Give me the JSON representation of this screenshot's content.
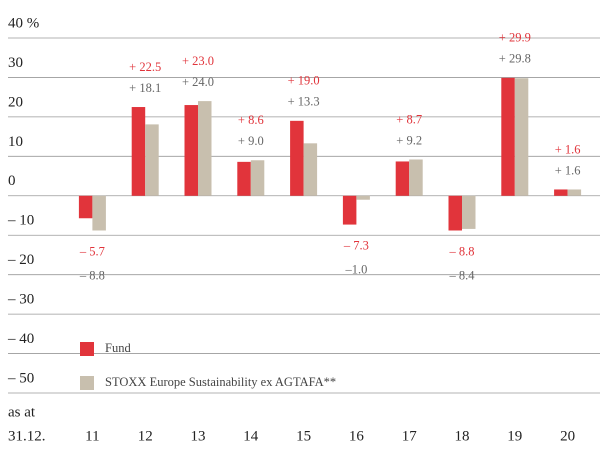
{
  "chart_data": {
    "type": "bar",
    "categories": [
      "11",
      "12",
      "13",
      "14",
      "15",
      "16",
      "17",
      "18",
      "19",
      "20"
    ],
    "x_label": [
      "as at",
      "31.12."
    ],
    "series": [
      {
        "name": "Fund",
        "color": "#e1343b",
        "label_color": "#e1343b",
        "values": [
          -5.7,
          22.5,
          23.0,
          8.6,
          19.0,
          -7.3,
          8.7,
          -8.8,
          29.9,
          1.6
        ],
        "value_labels": [
          "– 5.7",
          "+ 22.5",
          "+ 23.0",
          "+ 8.6",
          "+ 19.0",
          "– 7.3",
          "+ 8.7",
          "– 8.8",
          "+ 29.9",
          "+ 1.6"
        ]
      },
      {
        "name": "STOXX Europe Sustainability ex AGTAFA**",
        "color": "#c8bfae",
        "label_color": "#666666",
        "values": [
          -8.8,
          18.1,
          24.0,
          9.0,
          13.3,
          -1.0,
          9.2,
          -8.4,
          29.8,
          1.6
        ],
        "value_labels": [
          "– 8.8",
          "+ 18.1",
          "+ 24.0",
          "+ 9.0",
          "+ 13.3",
          "–1.0",
          "+ 9.2",
          "– 8.4",
          "+ 29.8",
          "+ 1.6"
        ]
      }
    ],
    "ylim": [
      -50,
      40
    ],
    "yticks": [
      {
        "value": -50,
        "label": "– 50"
      },
      {
        "value": -40,
        "label": "– 40"
      },
      {
        "value": -30,
        "label": "– 30"
      },
      {
        "value": -20,
        "label": "– 20"
      },
      {
        "value": -10,
        "label": "– 10"
      },
      0,
      10,
      20,
      30,
      {
        "value": 40,
        "label": "40 %"
      }
    ],
    "grid": true,
    "legend": "lower left"
  }
}
